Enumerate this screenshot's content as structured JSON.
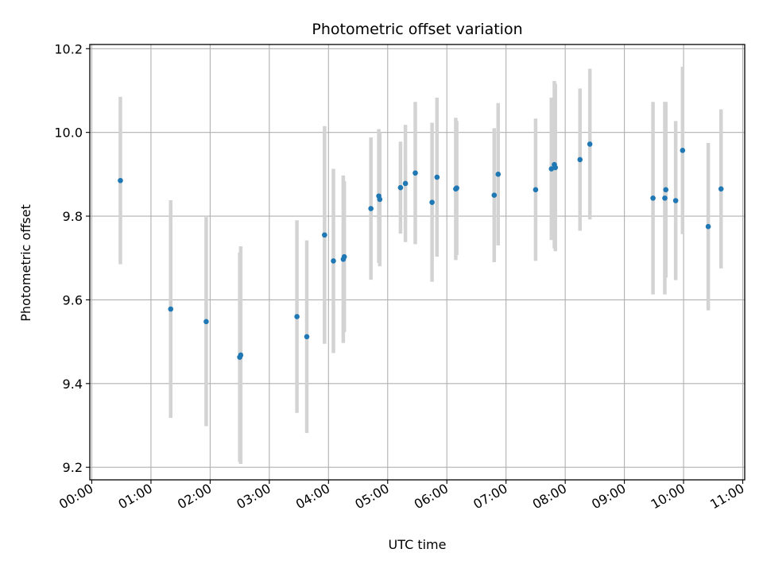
{
  "chart_data": {
    "type": "scatter",
    "title": "Photometric offset variation",
    "xlabel": "UTC time",
    "ylabel": "Photometric offset",
    "xlim": [
      "-00:02",
      "11:02"
    ],
    "ylim": [
      9.17,
      10.21
    ],
    "grid": true,
    "x_ticks": [
      "00:00",
      "01:00",
      "02:00",
      "03:00",
      "04:00",
      "05:00",
      "06:00",
      "07:00",
      "08:00",
      "09:00",
      "10:00",
      "11:00"
    ],
    "y_ticks": [
      9.2,
      9.4,
      9.6,
      9.8,
      10.0,
      10.2
    ],
    "colors": {
      "points": "#1f77b4",
      "errorbars": "#d3d3d3",
      "grid": "#b0b0b0",
      "axes": "#000000"
    },
    "points": [
      {
        "x": "00:29",
        "y": 9.885,
        "yerr": 0.2
      },
      {
        "x": "01:20",
        "y": 9.578,
        "yerr": 0.26
      },
      {
        "x": "01:56",
        "y": 9.548,
        "yerr": 0.25
      },
      {
        "x": "02:30",
        "y": 9.463,
        "yerr": 0.25
      },
      {
        "x": "02:31",
        "y": 9.468,
        "yerr": 0.26
      },
      {
        "x": "03:28",
        "y": 9.56,
        "yerr": 0.23
      },
      {
        "x": "03:38",
        "y": 9.512,
        "yerr": 0.23
      },
      {
        "x": "03:56",
        "y": 9.755,
        "yerr": 0.26
      },
      {
        "x": "04:05",
        "y": 9.693,
        "yerr": 0.22
      },
      {
        "x": "04:15",
        "y": 9.697,
        "yerr": 0.2
      },
      {
        "x": "04:16",
        "y": 9.703,
        "yerr": 0.18
      },
      {
        "x": "04:43",
        "y": 9.818,
        "yerr": 0.17
      },
      {
        "x": "04:51",
        "y": 9.848,
        "yerr": 0.16
      },
      {
        "x": "04:52",
        "y": 9.84,
        "yerr": 0.16
      },
      {
        "x": "05:13",
        "y": 9.868,
        "yerr": 0.11
      },
      {
        "x": "05:18",
        "y": 9.878,
        "yerr": 0.14
      },
      {
        "x": "05:28",
        "y": 9.903,
        "yerr": 0.17
      },
      {
        "x": "05:45",
        "y": 9.833,
        "yerr": 0.19
      },
      {
        "x": "05:50",
        "y": 9.893,
        "yerr": 0.19
      },
      {
        "x": "06:09",
        "y": 9.865,
        "yerr": 0.17
      },
      {
        "x": "06:10",
        "y": 9.867,
        "yerr": 0.16
      },
      {
        "x": "06:48",
        "y": 9.85,
        "yerr": 0.16
      },
      {
        "x": "06:52",
        "y": 9.9,
        "yerr": 0.17
      },
      {
        "x": "07:30",
        "y": 9.863,
        "yerr": 0.17
      },
      {
        "x": "07:46",
        "y": 9.913,
        "yerr": 0.17
      },
      {
        "x": "07:49",
        "y": 9.923,
        "yerr": 0.2
      },
      {
        "x": "07:50",
        "y": 9.916,
        "yerr": 0.2
      },
      {
        "x": "08:15",
        "y": 9.935,
        "yerr": 0.17
      },
      {
        "x": "08:25",
        "y": 9.972,
        "yerr": 0.18
      },
      {
        "x": "09:29",
        "y": 9.843,
        "yerr": 0.23
      },
      {
        "x": "09:41",
        "y": 9.843,
        "yerr": 0.23
      },
      {
        "x": "09:42",
        "y": 9.863,
        "yerr": 0.21
      },
      {
        "x": "09:52",
        "y": 9.837,
        "yerr": 0.19
      },
      {
        "x": "09:59",
        "y": 9.957,
        "yerr": 0.2
      },
      {
        "x": "10:25",
        "y": 9.775,
        "yerr": 0.2
      },
      {
        "x": "10:38",
        "y": 9.865,
        "yerr": 0.19
      }
    ]
  }
}
